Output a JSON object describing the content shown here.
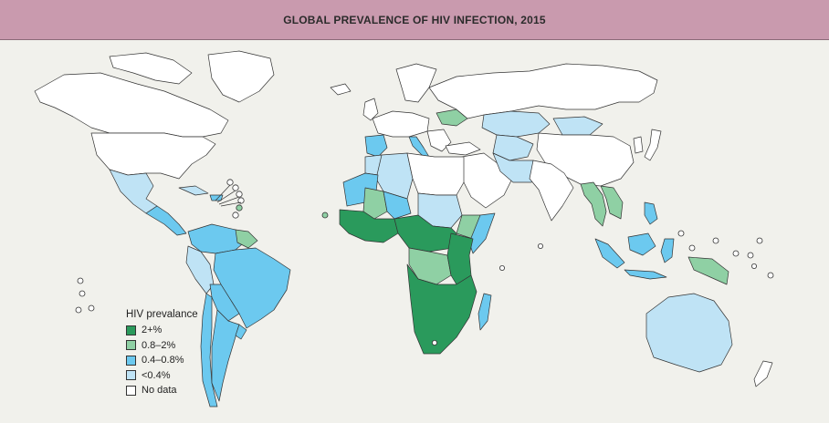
{
  "title": "GLOBAL PREVALENCE OF HIV INFECTION, 2015",
  "colors": {
    "background": "#f1f1ec",
    "title_bar": "#c99aae",
    "high": "#2a9a5c",
    "mid": "#8fd0a4",
    "low": "#6cc9ef",
    "very_low": "#bfe3f5",
    "no_data": "#ffffff"
  },
  "legend": {
    "title": "HIV prevalance",
    "items": [
      {
        "label": "2+%",
        "color": "#2a9a5c"
      },
      {
        "label": "0.8–2%",
        "color": "#8fd0a4"
      },
      {
        "label": "0.4–0.8%",
        "color": "#6cc9ef"
      },
      {
        "label": "<0.4%",
        "color": "#bfe3f5"
      },
      {
        "label": "No data",
        "color": "#ffffff"
      }
    ]
  }
}
